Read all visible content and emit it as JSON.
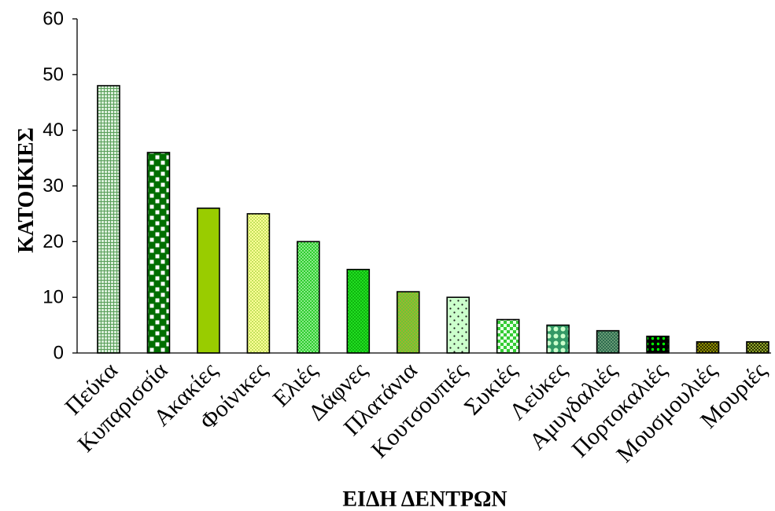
{
  "chart_data": {
    "type": "bar",
    "xlabel": "ΕΙΔΗ ΔΕΝΤΡΩΝ",
    "ylabel": "ΚΑΤΟΙΚΙΕΣ",
    "categories": [
      "Πεύκα",
      "Κυπαρισσία",
      "Ακακίες",
      "Φοίνικες",
      "Ελιές",
      "Δάφνες",
      "Πλατάνια",
      "Κουτσουπιές",
      "Συκιές",
      "Λεύκες",
      "Αμυγδαλιές",
      "Πορτοκαλιές",
      "Μουσμουλιές",
      "Μουριές"
    ],
    "values": [
      48,
      36,
      26,
      25,
      20,
      15,
      11,
      10,
      6,
      5,
      4,
      3,
      2,
      2
    ],
    "ylim": [
      0,
      60
    ],
    "yticks": [
      0,
      10,
      20,
      30,
      40,
      50,
      60
    ],
    "grid": false,
    "bar_fills": [
      {
        "fg": "#5a9f5a",
        "bg": "#d9eed9"
      },
      {
        "fg": "#ffffff",
        "bg": "#006e00"
      },
      {
        "fg": "#99cc00",
        "bg": "#99cc00"
      },
      {
        "fg": "#99cc33",
        "bg": "#ffff99"
      },
      {
        "fg": "#ccffcc",
        "bg": "#2ecc2e"
      },
      {
        "fg": "#009900",
        "bg": "#22dd22"
      },
      {
        "fg": "#cc9933",
        "bg": "#66cc33"
      },
      {
        "fg": "#1a1a1a",
        "bg": "#ccffcc"
      },
      {
        "fg": "#33cc33",
        "bg": "#e8ffe8"
      },
      {
        "fg": "#ccffcc",
        "bg": "#339966"
      },
      {
        "fg": "#8fbc8f",
        "bg": "#2e6b4f"
      },
      {
        "fg": "#00ff00",
        "bg": "#000000"
      },
      {
        "fg": "#cccc00",
        "bg": "#333300"
      },
      {
        "fg": "#2b3300",
        "bg": "#8fa32a"
      }
    ]
  }
}
